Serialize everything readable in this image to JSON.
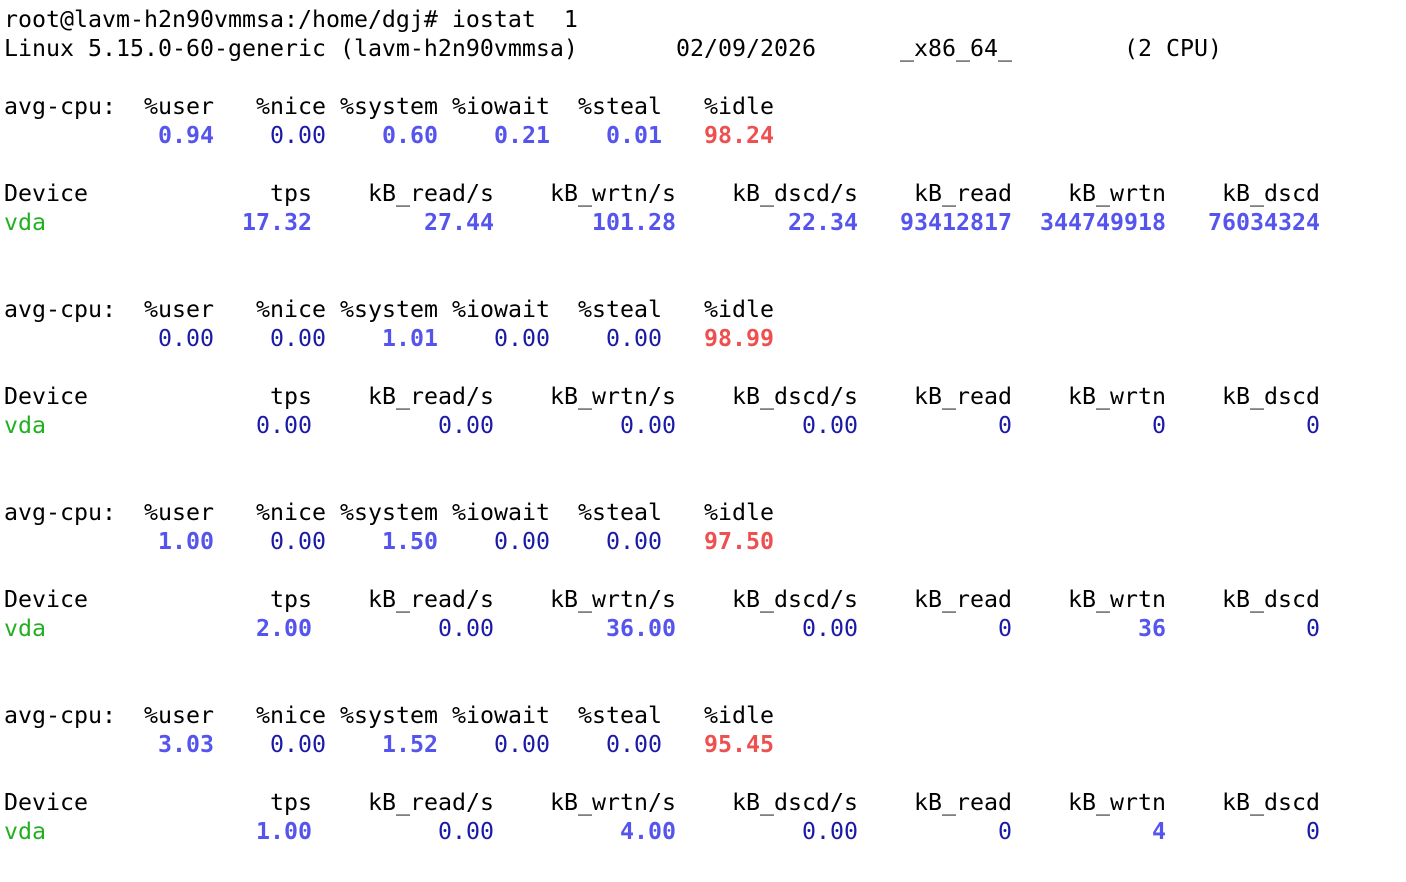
{
  "prompt": "root@lavm-h2n90vmmsa:/home/dgj# iostat  1",
  "system": {
    "kernel": "Linux 5.15.0-60-generic (lavm-h2n90vmmsa)",
    "date": "02/09/2026",
    "arch": "_x86_64_",
    "cpus": "(2 CPU)"
  },
  "cpu_header": {
    "label": "avg-cpu:",
    "columns": [
      "%user",
      "%nice",
      "%system",
      "%iowait",
      "%steal",
      "%idle"
    ]
  },
  "device_header": [
    "Device",
    "tps",
    "kB_read/s",
    "kB_wrtn/s",
    "kB_dscd/s",
    "kB_read",
    "kB_wrtn",
    "kB_dscd"
  ],
  "blocks": [
    {
      "cpu": [
        "0.94",
        "0.00",
        "0.60",
        "0.21",
        "0.01",
        "98.24"
      ],
      "device": [
        "vda",
        "17.32",
        "27.44",
        "101.28",
        "22.34",
        "93412817",
        "344749918",
        "76034324"
      ]
    },
    {
      "cpu": [
        "0.00",
        "0.00",
        "1.01",
        "0.00",
        "0.00",
        "98.99"
      ],
      "device": [
        "vda",
        "0.00",
        "0.00",
        "0.00",
        "0.00",
        "0",
        "0",
        "0"
      ]
    },
    {
      "cpu": [
        "1.00",
        "0.00",
        "1.50",
        "0.00",
        "0.00",
        "97.50"
      ],
      "device": [
        "vda",
        "2.00",
        "0.00",
        "36.00",
        "0.00",
        "0",
        "36",
        "0"
      ]
    },
    {
      "cpu": [
        "3.03",
        "0.00",
        "1.52",
        "0.00",
        "0.00",
        "95.45"
      ],
      "device": [
        "vda",
        "1.00",
        "0.00",
        "4.00",
        "0.00",
        "0",
        "4",
        "0"
      ]
    }
  ]
}
